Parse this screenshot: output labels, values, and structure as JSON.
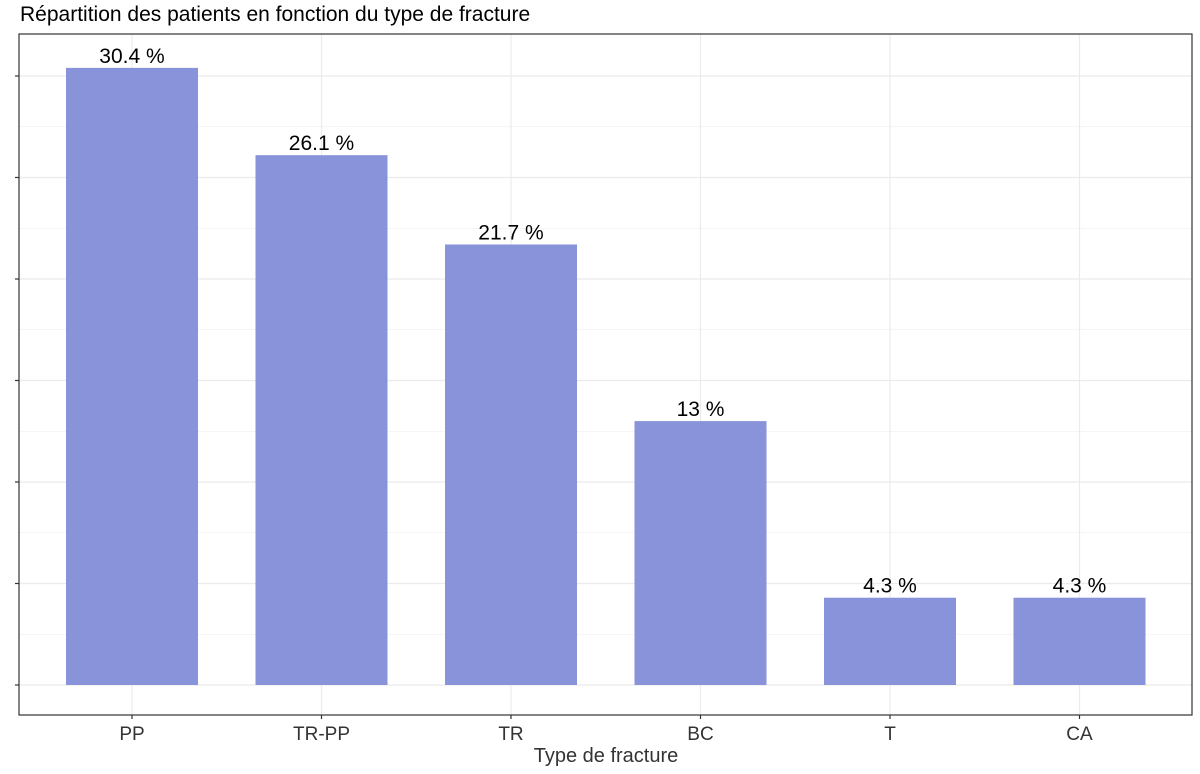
{
  "chart_data": {
    "type": "bar",
    "title": "Répartition des patients en fonction du type de fracture",
    "xlabel": "Type de fracture",
    "ylabel": "",
    "categories": [
      "PP",
      "TR-PP",
      "TR",
      "BC",
      "T",
      "CA"
    ],
    "values": [
      30.4,
      26.1,
      21.7,
      13,
      4.3,
      4.3
    ],
    "value_labels": [
      "30.4 %",
      "26.1 %",
      "21.7 %",
      "13 %",
      "4.3 %",
      "4.3 %"
    ],
    "ylim": [
      0,
      32
    ],
    "grid": true,
    "legend": "none",
    "colors": {
      "bar": "#8893d9",
      "grid": "#ebebeb",
      "panel_border": "#333333",
      "text": "#000000",
      "axis_title": "#333333"
    }
  }
}
